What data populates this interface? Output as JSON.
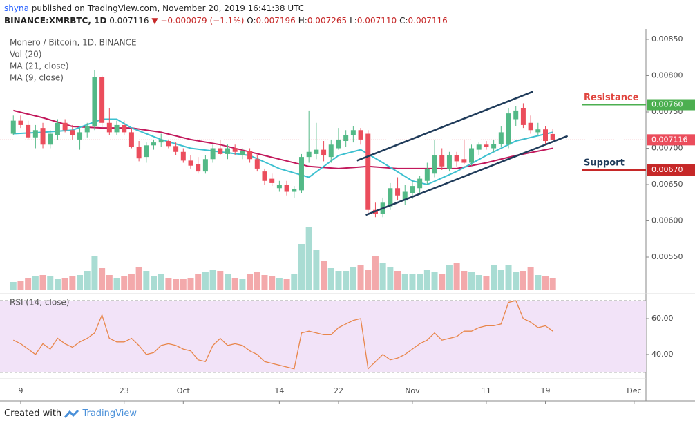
{
  "header": {
    "author": "shyna",
    "published": "published on TradingView.com, November 20, 2019 16:41:38 UTC",
    "symbol": "BINANCE:XMRBTC, 1D",
    "last": "0.007116",
    "change": "▼ −0.000079 (−1.1%)",
    "ohlc": [
      {
        "k": "O:",
        "v": "0.007196"
      },
      {
        "k": "H:",
        "v": "0.007265"
      },
      {
        "k": "L:",
        "v": "0.007110"
      },
      {
        "k": "C:",
        "v": "0.007116"
      }
    ]
  },
  "footer": {
    "created": "Created with",
    "brand": "TradingView"
  },
  "chart_data": {
    "type": "candlestick",
    "legend": [
      "Monero / Bitcoin, 1D, BINANCE",
      "Vol (20)",
      "MA (21, close)",
      "MA (9, close)"
    ],
    "x": [
      0,
      1,
      2,
      3,
      4,
      5,
      6,
      7,
      8,
      9,
      10,
      11,
      12,
      13,
      14,
      15,
      16,
      17,
      18,
      19,
      20,
      21,
      22,
      23,
      24,
      25,
      26,
      27,
      28,
      29,
      30,
      31,
      32,
      33,
      34,
      35,
      36,
      37,
      38,
      39,
      40,
      41,
      42,
      43,
      44,
      45,
      46,
      47,
      48,
      49,
      50,
      51,
      52,
      53,
      54,
      55,
      56,
      57,
      58,
      59,
      60,
      61,
      62,
      63,
      64,
      65,
      66,
      67,
      68,
      69,
      70,
      71,
      72,
      73
    ],
    "open": [
      0.0072,
      0.00738,
      0.00732,
      0.00715,
      0.00728,
      0.00705,
      0.00718,
      0.00735,
      0.00725,
      0.00712,
      0.00722,
      0.0073,
      0.00798,
      0.00735,
      0.00722,
      0.00732,
      0.00722,
      0.00702,
      0.00688,
      0.00704,
      0.00708,
      0.0071,
      0.00703,
      0.00695,
      0.00683,
      0.00678,
      0.00668,
      0.00685,
      0.007,
      0.00692,
      0.007,
      0.0069,
      0.00696,
      0.00685,
      0.00668,
      0.00658,
      0.00645,
      0.0065,
      0.0064,
      0.00642,
      0.00688,
      0.00692,
      0.00698,
      0.00688,
      0.007,
      0.0071,
      0.00718,
      0.00725,
      0.0072,
      0.00615,
      0.0061,
      0.0062,
      0.00645,
      0.00628,
      0.00638,
      0.00645,
      0.00655,
      0.00665,
      0.0069,
      0.00672,
      0.0069,
      0.00685,
      0.0068,
      0.00698,
      0.00705,
      0.007,
      0.00706,
      0.00705,
      0.0074,
      0.00755,
      0.00735,
      0.00722,
      0.00726,
      0.007196
    ],
    "high": [
      0.00745,
      0.00745,
      0.00738,
      0.00732,
      0.00735,
      0.00725,
      0.0074,
      0.0074,
      0.00732,
      0.00728,
      0.00735,
      0.00808,
      0.008,
      0.00755,
      0.00738,
      0.00738,
      0.00728,
      0.0071,
      0.00708,
      0.00712,
      0.0072,
      0.00712,
      0.00708,
      0.007,
      0.0069,
      0.00688,
      0.0069,
      0.00705,
      0.00712,
      0.00705,
      0.00705,
      0.007,
      0.007,
      0.0069,
      0.00672,
      0.00665,
      0.00655,
      0.00655,
      0.00648,
      0.00692,
      0.00752,
      0.00735,
      0.0071,
      0.00712,
      0.00728,
      0.00725,
      0.0073,
      0.00728,
      0.00725,
      0.00625,
      0.00632,
      0.00652,
      0.0066,
      0.0065,
      0.00655,
      0.00662,
      0.0068,
      0.00712,
      0.007,
      0.00695,
      0.00695,
      0.00712,
      0.00705,
      0.00708,
      0.0071,
      0.00712,
      0.0073,
      0.00755,
      0.00758,
      0.00762,
      0.00745,
      0.00735,
      0.0073,
      0.007265
    ],
    "low": [
      0.00718,
      0.00728,
      0.00712,
      0.007,
      0.007,
      0.007,
      0.00712,
      0.00722,
      0.00712,
      0.00698,
      0.00715,
      0.00725,
      0.00728,
      0.00718,
      0.00718,
      0.00718,
      0.007,
      0.00682,
      0.0068,
      0.00698,
      0.00702,
      0.007,
      0.0069,
      0.0068,
      0.00672,
      0.00665,
      0.00665,
      0.0068,
      0.0069,
      0.00685,
      0.0069,
      0.00685,
      0.0068,
      0.00668,
      0.0065,
      0.00648,
      0.0064,
      0.00635,
      0.00632,
      0.00638,
      0.0068,
      0.00685,
      0.00682,
      0.0068,
      0.00698,
      0.00702,
      0.00708,
      0.00705,
      0.0061,
      0.00605,
      0.00605,
      0.00615,
      0.00628,
      0.00622,
      0.0063,
      0.00638,
      0.0065,
      0.0066,
      0.0067,
      0.00668,
      0.00675,
      0.00678,
      0.00676,
      0.0069,
      0.00698,
      0.00695,
      0.00702,
      0.007,
      0.0073,
      0.00728,
      0.0072,
      0.00718,
      0.00705,
      0.00711
    ],
    "close": [
      0.00738,
      0.00732,
      0.00715,
      0.00725,
      0.00705,
      0.0072,
      0.00735,
      0.00725,
      0.00718,
      0.00722,
      0.0073,
      0.00798,
      0.00735,
      0.00722,
      0.00732,
      0.00722,
      0.00702,
      0.00686,
      0.00704,
      0.00708,
      0.00712,
      0.00703,
      0.00695,
      0.00683,
      0.00676,
      0.00668,
      0.00685,
      0.007,
      0.00692,
      0.007,
      0.00695,
      0.00696,
      0.00685,
      0.00672,
      0.00655,
      0.00652,
      0.0065,
      0.0064,
      0.00644,
      0.00688,
      0.00695,
      0.00698,
      0.0069,
      0.00705,
      0.00712,
      0.00718,
      0.00725,
      0.00712,
      0.00615,
      0.0061,
      0.00625,
      0.00645,
      0.00635,
      0.0064,
      0.00648,
      0.00658,
      0.00672,
      0.0069,
      0.00675,
      0.0069,
      0.00682,
      0.0068,
      0.007,
      0.00705,
      0.00702,
      0.00706,
      0.00722,
      0.00748,
      0.00752,
      0.00732,
      0.00725,
      0.00726,
      0.0071,
      0.007116
    ],
    "volume": [
      12,
      14,
      18,
      20,
      22,
      20,
      16,
      18,
      20,
      22,
      28,
      50,
      32,
      22,
      18,
      20,
      24,
      34,
      28,
      20,
      24,
      18,
      16,
      16,
      18,
      24,
      26,
      30,
      28,
      24,
      18,
      16,
      24,
      26,
      22,
      20,
      18,
      16,
      24,
      67,
      92,
      58,
      42,
      32,
      28,
      28,
      34,
      36,
      30,
      50,
      40,
      34,
      28,
      24,
      24,
      24,
      30,
      26,
      24,
      36,
      40,
      28,
      26,
      22,
      20,
      36,
      30,
      36,
      26,
      28,
      34,
      22,
      20,
      18
    ],
    "vlim": [
      0,
      100
    ],
    "up_color": "#53b987",
    "down_color": "#eb4d5c",
    "up_volume_color": "#a9dcd3",
    "down_volume_color": "#f3a9ab",
    "moving_averages": [
      {
        "name": "MA (21, close)",
        "color": "#c2185b",
        "x": [
          0,
          4,
          8,
          12,
          16,
          20,
          24,
          28,
          32,
          36,
          40,
          44,
          48,
          52,
          56,
          60,
          64,
          68,
          73
        ],
        "values": [
          0.00752,
          0.00742,
          0.0073,
          0.00728,
          0.00728,
          0.00722,
          0.00712,
          0.00705,
          0.00695,
          0.00685,
          0.00675,
          0.00672,
          0.00675,
          0.00672,
          0.00672,
          0.00672,
          0.0068,
          0.0069,
          0.007
        ]
      },
      {
        "name": "MA (9, close)",
        "color": "#3cc0d0",
        "x": [
          0,
          4,
          8,
          12,
          14,
          16,
          20,
          24,
          28,
          32,
          36,
          40,
          42,
          44,
          47,
          50,
          54,
          56,
          60,
          64,
          68,
          73
        ],
        "values": [
          0.0072,
          0.00722,
          0.00725,
          0.0074,
          0.0074,
          0.00728,
          0.00712,
          0.007,
          0.00695,
          0.0069,
          0.00672,
          0.0066,
          0.00675,
          0.0069,
          0.00698,
          0.0068,
          0.00655,
          0.0065,
          0.00668,
          0.0069,
          0.0071,
          0.00722
        ]
      }
    ],
    "trend_lines": [
      {
        "x": [
          46.5,
          70.3
        ],
        "y": [
          0.00683,
          0.00778
        ]
      },
      {
        "x": [
          47.7,
          75
        ],
        "y": [
          0.00608,
          0.00717
        ]
      }
    ],
    "trend_color": "#1f3b5a",
    "levels": [
      {
        "name": "Resistance",
        "value": 0.0076,
        "label": "0.00760",
        "color": "#4caf50",
        "text_color": "#e0443e"
      },
      {
        "name": "Support",
        "value": 0.0067,
        "label": "0.00670",
        "color": "#c62828",
        "text_color": "#1f3b5a"
      }
    ],
    "xlim": [
      -1.8,
      85.6
    ],
    "xticks": [
      {
        "value": 1,
        "label": "9"
      },
      {
        "value": 15,
        "label": "23"
      },
      {
        "value": 23,
        "label": "Oct"
      },
      {
        "value": 36,
        "label": "14"
      },
      {
        "value": 44,
        "label": "22"
      },
      {
        "value": 54,
        "label": "Nov"
      },
      {
        "value": 64,
        "label": "11"
      },
      {
        "value": 72,
        "label": "19"
      },
      {
        "value": 84,
        "label": "Dec"
      }
    ],
    "ylim": [
      0.005043,
      0.008643
    ],
    "yticks": [
      {
        "value": 0.0085,
        "label": "0.00850"
      },
      {
        "value": 0.008,
        "label": "0.00800"
      },
      {
        "value": 0.0075,
        "label": "0.00750"
      },
      {
        "value": 0.007,
        "label": "0.00700"
      },
      {
        "value": 0.0065,
        "label": "0.00650"
      },
      {
        "value": 0.006,
        "label": "0.00600"
      },
      {
        "value": 0.0055,
        "label": "0.00550"
      }
    ],
    "grid": false,
    "rsi": {
      "label": "RSI (14, close)",
      "color": "#e8864a",
      "band": [
        30,
        70
      ],
      "band_color": "#f2e3f8",
      "values": [
        48,
        46,
        43,
        40,
        46,
        43,
        49,
        46,
        44,
        47,
        49,
        52,
        62,
        49,
        47,
        47,
        49,
        45,
        40,
        41,
        45,
        46,
        45,
        43,
        42,
        37,
        36,
        45,
        49,
        45,
        46,
        45,
        42,
        40,
        36,
        35,
        34,
        33,
        32,
        52,
        53,
        52,
        51,
        51,
        55,
        57,
        59,
        60,
        32,
        36,
        40,
        37,
        38,
        40,
        43,
        46,
        48,
        52,
        48,
        49,
        50,
        53,
        53,
        55,
        56,
        56,
        57,
        69,
        70,
        60,
        58,
        55,
        56,
        53
      ],
      "ylim": [
        26.5,
        72.7
      ],
      "yticks": [
        {
          "value": 60,
          "label": "60.00"
        },
        {
          "value": 40,
          "label": "40.00"
        }
      ]
    }
  }
}
